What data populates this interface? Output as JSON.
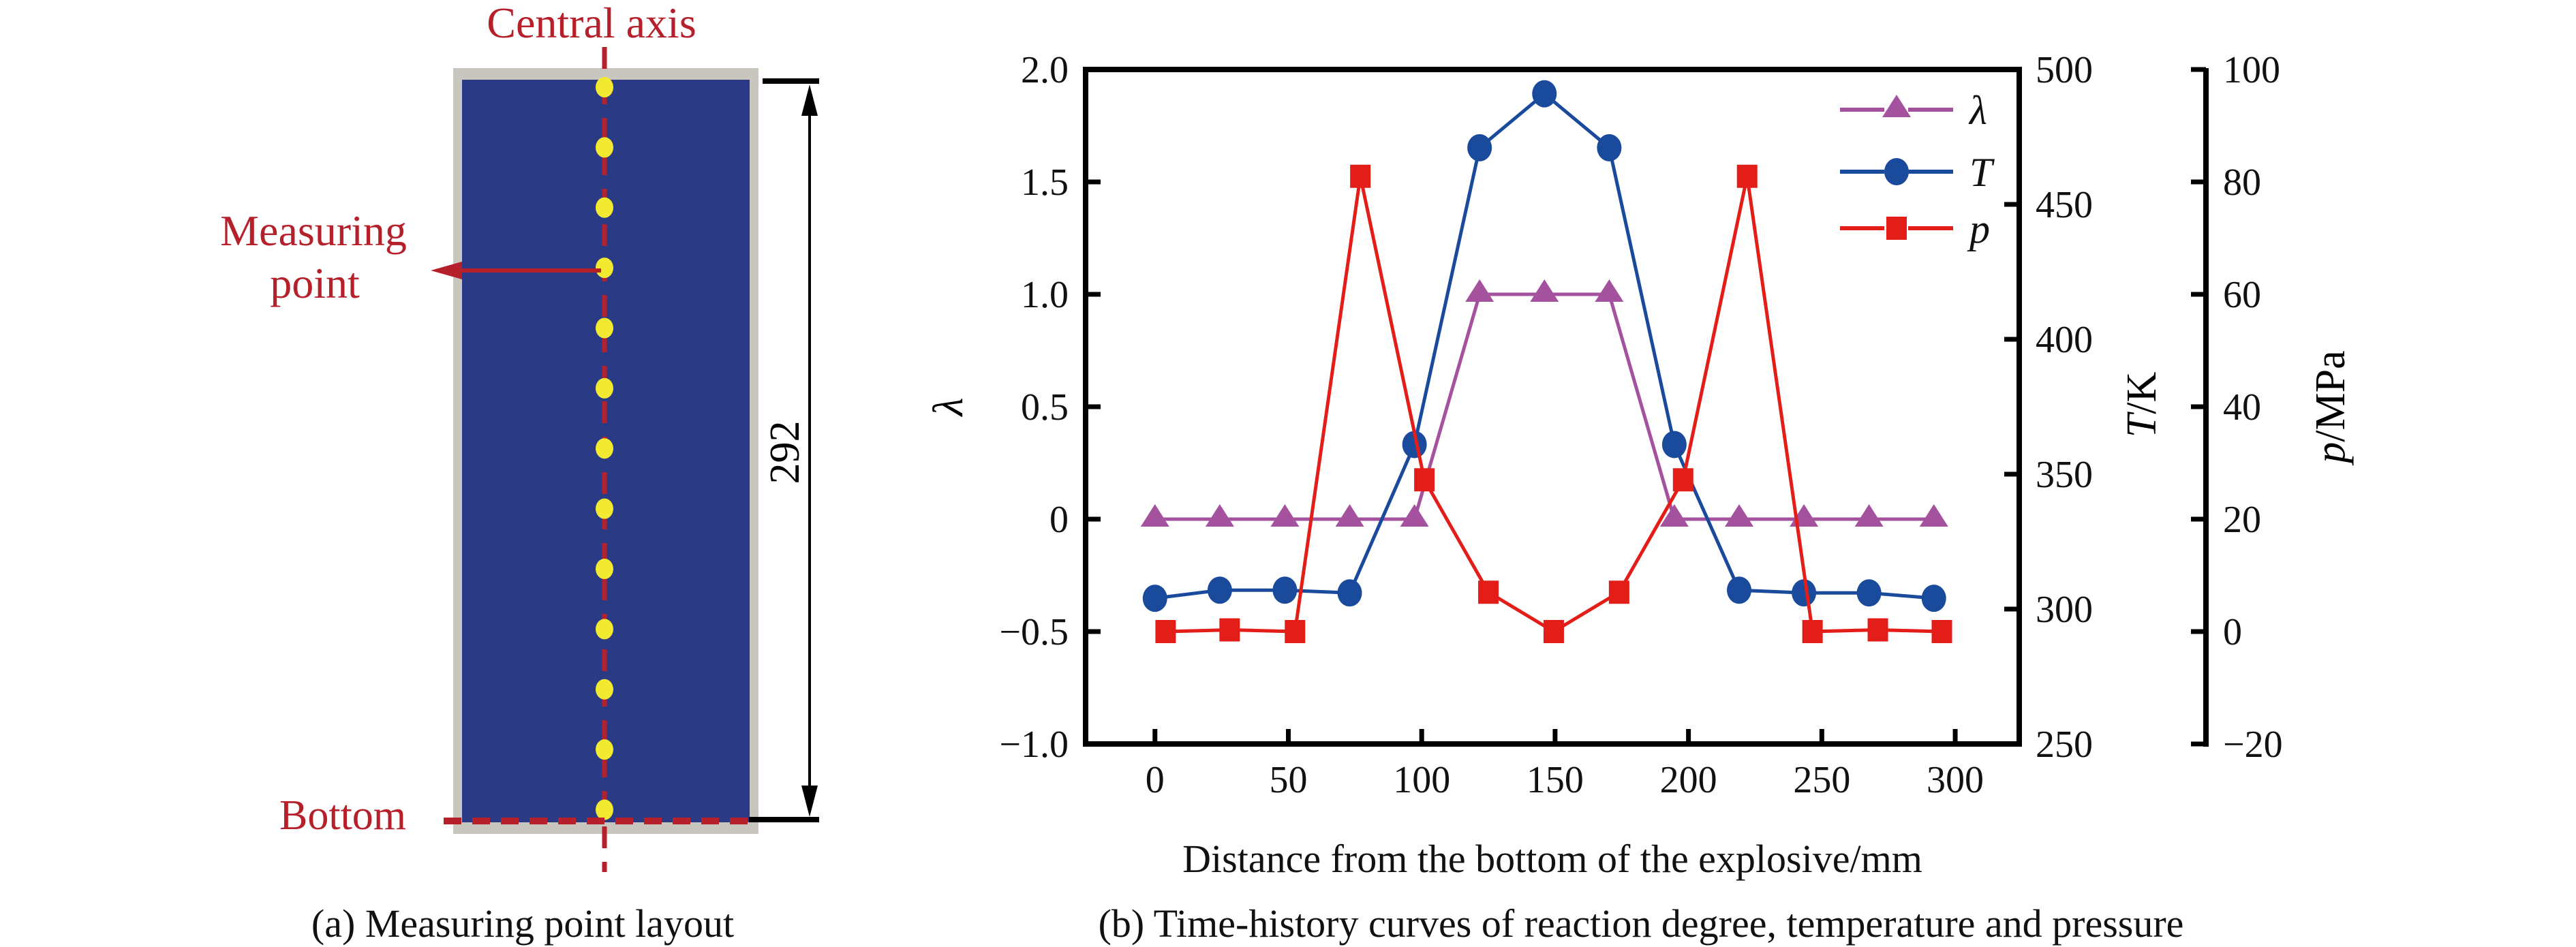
{
  "figure": {
    "panel_a": {
      "central_axis_label": "Central axis",
      "measuring_point_label_line1": "Measuring",
      "measuring_point_label_line2": "point",
      "bottom_label": "Bottom",
      "dimension_label": "292",
      "caption": "(a) Measuring point layout",
      "measuring_point_count": 13,
      "colors": {
        "explosive_fill": "#2B3A85",
        "shell": "#C9C5BF",
        "measuring_point": "#F2E931",
        "annotation": "#B5202A"
      }
    },
    "panel_b": {
      "caption": "(b) Time-history curves of reaction degree, temperature and pressure"
    }
  },
  "chart_data": {
    "type": "line",
    "title": "",
    "xlabel": "Distance from the bottom of the explosive/mm",
    "xlim": [
      -26,
      324
    ],
    "x_ticks": [
      "0",
      "50",
      "100",
      "150",
      "200",
      "250",
      "300"
    ],
    "x_tick_values": [
      0,
      50,
      100,
      150,
      200,
      250,
      300
    ],
    "grid": false,
    "legend_position": "top-right",
    "axes": {
      "left": {
        "label": "λ",
        "ylim": [
          -1.0,
          2.0
        ],
        "ticks": [
          "2.0",
          "1.5",
          "1.0",
          "0.5",
          "0",
          "−0.5",
          "−1.0"
        ],
        "tick_values": [
          2.0,
          1.5,
          1.0,
          0.5,
          0,
          -0.5,
          -1.0
        ]
      },
      "right": {
        "label_italic": "T",
        "label_unit": "/K",
        "ylim": [
          250,
          500
        ],
        "ticks": [
          "500",
          "450",
          "400",
          "350",
          "300",
          "250"
        ],
        "tick_values": [
          500,
          450,
          400,
          350,
          300,
          250
        ]
      },
      "right_offset": {
        "label_italic": "p",
        "label_unit": "/MPa",
        "ylim": [
          -20,
          100
        ],
        "ticks": [
          "100",
          "80",
          "60",
          "40",
          "20",
          "0",
          "−20"
        ],
        "tick_values": [
          100,
          80,
          60,
          40,
          20,
          0,
          -20
        ]
      }
    },
    "series": [
      {
        "name": "λ",
        "axis": "left",
        "marker": "triangle",
        "color": "#A5529E",
        "x": [
          0,
          24.3,
          48.7,
          73,
          97.3,
          121.7,
          146,
          170.3,
          194.7,
          219,
          243.3,
          267.7,
          292
        ],
        "values": [
          0,
          0,
          0,
          0,
          0,
          1,
          1,
          1,
          0,
          0,
          0,
          0,
          0
        ]
      },
      {
        "name": "T",
        "axis": "right",
        "marker": "circle",
        "color": "#1A4A9C",
        "x": [
          0,
          24.3,
          48.7,
          73,
          97.3,
          121.7,
          146,
          170.3,
          194.7,
          219,
          243.3,
          267.7,
          292
        ],
        "values": [
          304,
          307,
          307,
          306,
          361,
          471,
          491,
          471,
          361,
          307,
          306,
          306,
          304
        ]
      },
      {
        "name": "p",
        "axis": "right_offset",
        "marker": "square",
        "color": "#E31E19",
        "x": [
          4,
          28,
          52.5,
          77,
          101,
          125,
          149.5,
          174,
          198,
          222,
          246.5,
          271,
          295
        ],
        "values": [
          0,
          0.3,
          0,
          81,
          27,
          7,
          0,
          7,
          27,
          81,
          0,
          0.3,
          0
        ]
      }
    ]
  }
}
